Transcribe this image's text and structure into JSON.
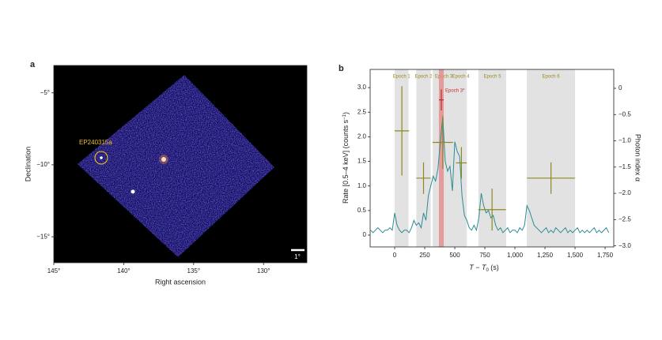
{
  "chart_data": [
    {
      "type": "image",
      "label": "a",
      "xlabel": "Right ascension",
      "ylabel": "Declination",
      "annotation": "EP240315a",
      "scale_bar": "1°",
      "xlim": [
        145,
        126.9
      ],
      "ylim": [
        -3.1,
        -16.8
      ],
      "xticks": [
        {
          "value": 145,
          "label": "145°"
        },
        {
          "value": 140,
          "label": "140°"
        },
        {
          "value": 135,
          "label": "135°"
        },
        {
          "value": 130,
          "label": "130°"
        }
      ],
      "yticks": [
        {
          "value": -5,
          "label": "−5°"
        },
        {
          "value": -10,
          "label": "−10°"
        },
        {
          "value": -15,
          "label": "−15°"
        }
      ]
    },
    {
      "type": "line",
      "label": "b",
      "xlabel_parts": [
        "T − T",
        "0",
        " (s)"
      ],
      "ylabel_parts": [
        "Rate [0.5–4 keV] (counts s",
        "−1",
        ")"
      ],
      "y2label": "Photon index α",
      "xlim": [
        -204,
        1822
      ],
      "ylim": [
        -0.24,
        3.37
      ],
      "y2lim": [
        -3.02,
        0.36
      ],
      "xticks": [
        0,
        250,
        500,
        750,
        {
          "value": 1000,
          "label": "1,000"
        },
        {
          "value": 1250,
          "label": "1,250"
        },
        {
          "value": 1500,
          "label": "1,500"
        },
        {
          "value": 1750,
          "label": "1,750"
        }
      ],
      "yticks": [
        0,
        0.5,
        {
          "value": 1,
          "label": "1.0"
        },
        1.5,
        {
          "value": 2,
          "label": "2.0"
        },
        2.5,
        {
          "value": 3,
          "label": "3.0"
        }
      ],
      "y2ticks": [
        0,
        {
          "value": -0.5,
          "label": "−0.5"
        },
        {
          "value": -1,
          "label": "−1.0"
        },
        {
          "value": -1.5,
          "label": "−1.5"
        },
        {
          "value": -2,
          "label": "−2.0"
        },
        {
          "value": -2.5,
          "label": "−2.5"
        },
        {
          "value": -3,
          "label": "−3.0"
        }
      ],
      "epochs": [
        {
          "label": "Epoch 1",
          "start": 0,
          "end": 115
        },
        {
          "label": "Epoch 2",
          "start": 180,
          "end": 300
        },
        {
          "label": "Epoch 3",
          "start": 316,
          "end": 500
        },
        {
          "label": "Epoch 4",
          "start": 500,
          "end": 600
        },
        {
          "label": "Epoch 5",
          "start": 697,
          "end": 927
        },
        {
          "label": "Epoch 6",
          "start": 1099,
          "end": 1500
        }
      ],
      "highlight": {
        "label": "Epoch 3*",
        "start": 368,
        "end": 408,
        "color": "#e58a8a"
      },
      "x": [
        -200,
        -180,
        -160,
        -140,
        -120,
        -100,
        -80,
        -60,
        -40,
        -20,
        0,
        20,
        40,
        60,
        80,
        100,
        120,
        140,
        160,
        180,
        200,
        220,
        240,
        260,
        280,
        300,
        320,
        340,
        360,
        380,
        400,
        420,
        440,
        460,
        480,
        500,
        520,
        540,
        560,
        580,
        600,
        620,
        640,
        660,
        680,
        700,
        720,
        740,
        760,
        780,
        800,
        820,
        840,
        860,
        880,
        900,
        920,
        940,
        960,
        980,
        1000,
        1020,
        1040,
        1060,
        1080,
        1100,
        1120,
        1140,
        1160,
        1180,
        1200,
        1220,
        1240,
        1260,
        1280,
        1300,
        1320,
        1340,
        1360,
        1380,
        1400,
        1420,
        1440,
        1460,
        1480,
        1500,
        1520,
        1540,
        1560,
        1580,
        1600,
        1620,
        1640,
        1660,
        1680,
        1700,
        1720,
        1740,
        1760,
        1780
      ],
      "series": [
        {
          "color": "#2b8c96",
          "values": [
            0.1,
            0.05,
            0.1,
            0.15,
            0.1,
            0.05,
            0.1,
            0.1,
            0.15,
            0.1,
            0.45,
            0.2,
            0.1,
            0.05,
            0.1,
            0.1,
            0.05,
            0.15,
            0.3,
            0.2,
            0.25,
            0.15,
            0.45,
            0.3,
            0.8,
            1.0,
            1.2,
            1.1,
            1.35,
            1.9,
            2.4,
            1.5,
            1.3,
            1.4,
            0.9,
            1.9,
            1.7,
            1.6,
            0.8,
            0.4,
            0.3,
            0.15,
            0.1,
            0.2,
            0.1,
            0.35,
            0.85,
            0.6,
            0.45,
            0.5,
            0.35,
            0.4,
            0.2,
            0.1,
            0.15,
            0.05,
            0.1,
            0.15,
            0.05,
            0.1,
            0.1,
            0.05,
            0.15,
            0.1,
            0.2,
            0.6,
            0.5,
            0.35,
            0.2,
            0.15,
            0.1,
            0.05,
            0.1,
            0.15,
            0.05,
            0.1,
            0.05,
            0.15,
            0.1,
            0.05,
            0.1,
            0.15,
            0.05,
            0.1,
            0.05,
            0.1,
            0.15,
            0.05,
            0.1,
            0.05,
            0.1,
            0.05,
            0.1,
            0.15,
            0.05,
            0.1,
            0.05,
            0.1,
            0.15,
            0.05
          ]
        }
      ],
      "errorbars": [
        {
          "color": "#8c8a1c",
          "axis": "y2",
          "x": [
            60,
            240,
            400,
            555,
            810,
            1300
          ],
          "xerr": [
            60,
            60,
            85,
            45,
            115,
            200
          ],
          "y": [
            -0.81,
            -1.71,
            -1.03,
            -1.42,
            -2.31,
            -1.71
          ],
          "yerr": [
            0.85,
            0.3,
            0.5,
            0.3,
            0.4,
            0.3
          ]
        },
        {
          "color": "#c02a2a",
          "axis": "y2",
          "x": [
            388
          ],
          "xerr": [
            20
          ],
          "y": [
            -0.22
          ],
          "yerr": [
            0.2
          ]
        }
      ]
    }
  ]
}
